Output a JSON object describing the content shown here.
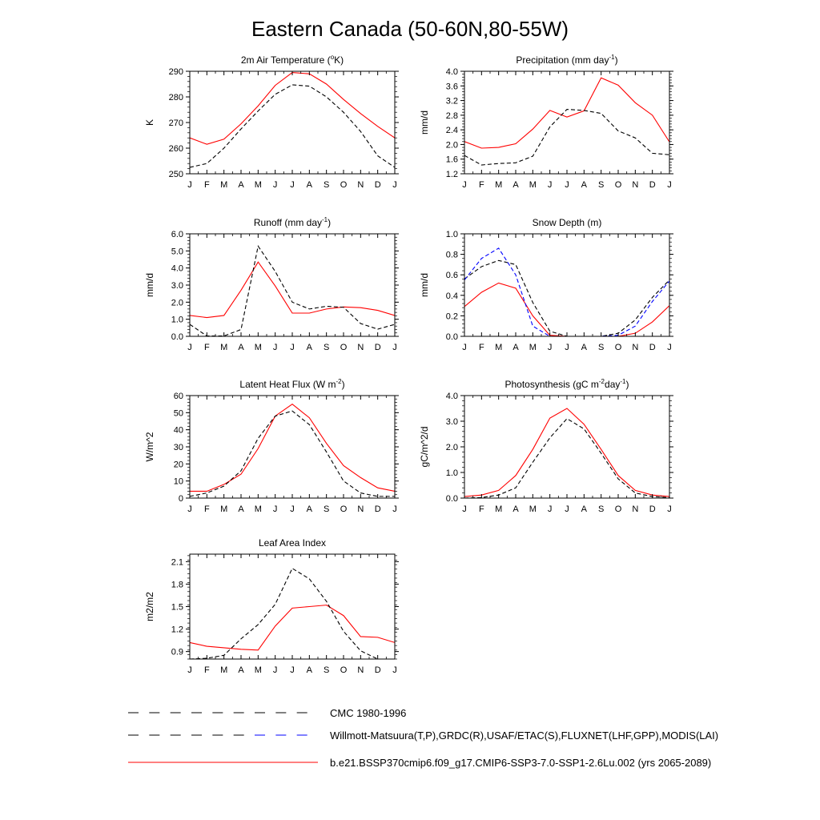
{
  "title": "Eastern Canada (50-60N,80-55W)",
  "months": [
    "J",
    "F",
    "M",
    "A",
    "M",
    "J",
    "J",
    "A",
    "S",
    "O",
    "N",
    "D",
    "J"
  ],
  "legend": [
    {
      "label": "CMC 1980-1996",
      "color": "#000000",
      "dash": true,
      "dash2": null
    },
    {
      "label": "Willmott-Matsuura(T,P),GRDC(R),USAF/ETAC(S),FLUXNET(LHF,GPP),MODIS(LAI)",
      "color": "#000000",
      "dash": true,
      "dash2": "#0000ff"
    },
    {
      "label": "b.e21.BSSP370cmip6.f09_g17.CMIP6-SSP3-7.0-SSP1-2.6Lu.002 (yrs 2065-2089)",
      "color": "#ff0000",
      "dash": false,
      "dash2": null
    }
  ],
  "chart_data": [
    {
      "type": "line",
      "title": "2m Air Temperature (",
      "title_sup": "o",
      "title_after": "K)",
      "ylabel": "K",
      "ylim": [
        250,
        290
      ],
      "yticks": [
        250,
        260,
        270,
        280,
        290
      ],
      "yticklabels": [
        "250",
        "260",
        "270",
        "280",
        "290"
      ],
      "series": [
        {
          "color": "#ff0000",
          "dash": false,
          "values": [
            264,
            261.5,
            263.5,
            269.5,
            276.5,
            284.5,
            289.5,
            289,
            285,
            279,
            273.5,
            268.5,
            264
          ]
        },
        {
          "color": "#000000",
          "dash": true,
          "values": [
            252.5,
            254,
            260,
            267.5,
            274.5,
            281,
            284.7,
            284.2,
            280,
            274,
            266.5,
            257,
            252.5
          ]
        }
      ]
    },
    {
      "type": "line",
      "title": "Precipitation (mm day",
      "title_sup": "-1",
      "title_after": ")",
      "ylabel": "mm/d",
      "ylim": [
        1.2,
        4.0
      ],
      "yticks": [
        1.2,
        1.6,
        2.0,
        2.4,
        2.8,
        3.2,
        3.6,
        4.0
      ],
      "yticklabels": [
        "1.2",
        "1.6",
        "2.0",
        "2.4",
        "2.8",
        "3.2",
        "3.6",
        "4.0"
      ],
      "series": [
        {
          "color": "#ff0000",
          "dash": false,
          "values": [
            2.08,
            1.9,
            1.92,
            2.02,
            2.42,
            2.93,
            2.75,
            2.92,
            3.82,
            3.62,
            3.14,
            2.8,
            2.07
          ]
        },
        {
          "color": "#000000",
          "dash": true,
          "values": [
            1.7,
            1.44,
            1.48,
            1.5,
            1.68,
            2.48,
            2.96,
            2.93,
            2.85,
            2.37,
            2.18,
            1.76,
            1.72
          ]
        }
      ]
    },
    {
      "type": "line",
      "title": "Runoff (mm day",
      "title_sup": "-1",
      "title_after": ")",
      "ylabel": "mm/d",
      "ylim": [
        0,
        6
      ],
      "yticks": [
        0,
        1,
        2,
        3,
        4,
        5,
        6
      ],
      "yticklabels": [
        "0.0",
        "1.0",
        "2.0",
        "3.0",
        "4.0",
        "5.0",
        "6.0"
      ],
      "series": [
        {
          "color": "#ff0000",
          "dash": false,
          "values": [
            1.22,
            1.1,
            1.22,
            2.7,
            4.35,
            2.95,
            1.36,
            1.36,
            1.6,
            1.72,
            1.68,
            1.52,
            1.22
          ]
        },
        {
          "color": "#000000",
          "dash": true,
          "values": [
            0.7,
            0.02,
            0.02,
            0.4,
            5.28,
            3.8,
            2.0,
            1.6,
            1.76,
            1.7,
            0.75,
            0.42,
            0.7
          ]
        }
      ]
    },
    {
      "type": "line",
      "title": "Snow Depth (m)",
      "title_sup": "",
      "title_after": "",
      "ylabel": "mm/d",
      "ylim": [
        0,
        1
      ],
      "yticks": [
        0,
        0.2,
        0.4,
        0.6,
        0.8,
        1.0
      ],
      "yticklabels": [
        "0.0",
        "0.2",
        "0.4",
        "0.6",
        "0.8",
        "1.0"
      ],
      "series": [
        {
          "color": "#ff0000",
          "dash": false,
          "values": [
            0.29,
            0.43,
            0.52,
            0.47,
            0.2,
            0.01,
            0.0,
            0.0,
            0.0,
            0.0,
            0.03,
            0.14,
            0.3
          ]
        },
        {
          "color": "#000000",
          "dash": true,
          "values": [
            0.56,
            0.68,
            0.74,
            0.7,
            0.33,
            0.05,
            0.0,
            0.0,
            0.0,
            0.03,
            0.16,
            0.38,
            0.55
          ]
        },
        {
          "color": "#0000ff",
          "dash": true,
          "values": [
            0.55,
            0.76,
            0.86,
            0.6,
            0.1,
            0.0,
            0.0,
            0.0,
            0.0,
            0.01,
            0.1,
            0.34,
            0.54
          ]
        }
      ]
    },
    {
      "type": "line",
      "title": "Latent Heat Flux (W m",
      "title_sup": "-2",
      "title_after": ")",
      "ylabel": "W/m^2",
      "ylim": [
        0,
        60
      ],
      "yticks": [
        0,
        10,
        20,
        30,
        40,
        50,
        60
      ],
      "yticklabels": [
        "0",
        "10",
        "20",
        "30",
        "40",
        "50",
        "60"
      ],
      "series": [
        {
          "color": "#ff0000",
          "dash": false,
          "values": [
            4,
            4,
            8,
            14,
            29,
            48,
            55,
            47,
            32,
            19,
            12,
            6,
            4
          ]
        },
        {
          "color": "#000000",
          "dash": true,
          "values": [
            1,
            3,
            7,
            16,
            35,
            48,
            51,
            43,
            27,
            10,
            3,
            1,
            1
          ]
        }
      ]
    },
    {
      "type": "line",
      "title": "Photosynthesis (gC m",
      "title_sup": "-2",
      "title_after": "day",
      "title_sup2": "-1",
      "title_after2": ")",
      "ylabel": "gC/m^2/d",
      "ylim": [
        0,
        4
      ],
      "yticks": [
        0,
        1,
        2,
        3,
        4
      ],
      "yticklabels": [
        "0.0",
        "1.0",
        "2.0",
        "3.0",
        "4.0"
      ],
      "series": [
        {
          "color": "#ff0000",
          "dash": false,
          "values": [
            0.06,
            0.12,
            0.3,
            0.88,
            1.9,
            3.12,
            3.5,
            2.88,
            1.9,
            0.88,
            0.3,
            0.12,
            0.06
          ]
        },
        {
          "color": "#000000",
          "dash": true,
          "values": [
            0.0,
            0.02,
            0.12,
            0.4,
            1.4,
            2.35,
            3.1,
            2.7,
            1.75,
            0.75,
            0.2,
            0.06,
            0.02
          ]
        }
      ]
    },
    {
      "type": "line",
      "title": "Leaf Area Index",
      "title_sup": "",
      "title_after": "",
      "ylabel": "m2/m2",
      "ylim": [
        0.8,
        2.2
      ],
      "yticks": [
        0.9,
        1.2,
        1.5,
        1.8,
        2.1
      ],
      "yticklabels": [
        "0.9",
        "1.2",
        "1.5",
        "1.8",
        "2.1"
      ],
      "series": [
        {
          "color": "#ff0000",
          "dash": false,
          "values": [
            1.02,
            0.97,
            0.95,
            0.93,
            0.92,
            1.24,
            1.48,
            1.5,
            1.52,
            1.38,
            1.1,
            1.09,
            1.02
          ]
        },
        {
          "color": "#000000",
          "dash": true,
          "values": [
            0.8,
            0.81,
            0.85,
            1.07,
            1.26,
            1.53,
            2.01,
            1.87,
            1.57,
            1.17,
            0.91,
            0.8,
            0.8
          ]
        }
      ]
    }
  ]
}
